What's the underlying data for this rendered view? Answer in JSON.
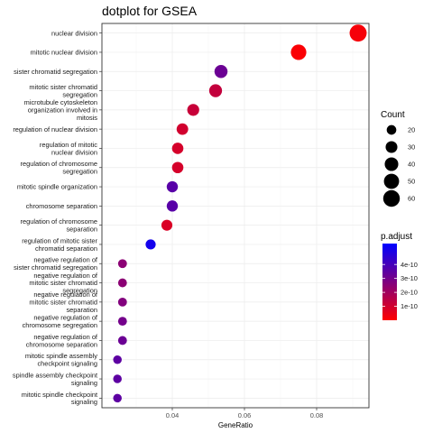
{
  "chart_data": {
    "type": "scatter",
    "title": "dotplot for GSEA",
    "xlabel": "GeneRatio",
    "ylabel": "",
    "xlim": [
      0.0205,
      0.0945
    ],
    "xticks": [
      0.04,
      0.06,
      0.08
    ],
    "xtick_labels": [
      "0.04",
      "0.06",
      "0.08"
    ],
    "grid": true,
    "points": [
      {
        "label": [
          "nuclear division"
        ],
        "x": 0.0915,
        "count": 63,
        "padj": 2e-11
      },
      {
        "label": [
          "mitotic nuclear division"
        ],
        "x": 0.075,
        "count": 52,
        "padj": 1e-11
      },
      {
        "label": [
          "sister chromatid segregation"
        ],
        "x": 0.0535,
        "count": 37,
        "padj": 3.2e-10
      },
      {
        "label": [
          "mitotic sister chromatid",
          "segregation"
        ],
        "x": 0.052,
        "count": 36,
        "padj": 1.3e-10
      },
      {
        "label": [
          "microtubule cytoskeleton",
          "organization involved in",
          "mitosis"
        ],
        "x": 0.0458,
        "count": 31,
        "padj": 1.2e-10
      },
      {
        "label": [
          "regulation of nuclear division"
        ],
        "x": 0.0428,
        "count": 29,
        "padj": 1e-10
      },
      {
        "label": [
          "regulation of mitotic",
          "nuclear division"
        ],
        "x": 0.0415,
        "count": 28,
        "padj": 9e-11
      },
      {
        "label": [
          "regulation of chromosome",
          "segregation"
        ],
        "x": 0.0415,
        "count": 28,
        "padj": 9e-11
      },
      {
        "label": [
          "mitotic spindle organization"
        ],
        "x": 0.04,
        "count": 27,
        "padj": 3.6e-10
      },
      {
        "label": [
          "chromosome separation"
        ],
        "x": 0.04,
        "count": 27,
        "padj": 3.6e-10
      },
      {
        "label": [
          "regulation of chromosome",
          "separation"
        ],
        "x": 0.0385,
        "count": 26,
        "padj": 8e-11
      },
      {
        "label": [
          "regulation of mitotic sister",
          "chromatid separation"
        ],
        "x": 0.034,
        "count": 22,
        "padj": 5.1e-10
      },
      {
        "label": [
          "negative regulation of",
          "sister chromatid segregation"
        ],
        "x": 0.0262,
        "count": 17,
        "padj": 2.5e-10
      },
      {
        "label": [
          "negative regulation of",
          "mitotic sister chromatid",
          "segregation"
        ],
        "x": 0.0262,
        "count": 17,
        "padj": 2.5e-10
      },
      {
        "label": [
          "negative regulation of",
          "mitotic sister chromatid",
          "separation"
        ],
        "x": 0.0262,
        "count": 17,
        "padj": 2.7e-10
      },
      {
        "label": [
          "negative regulation of",
          "chromosome segregation"
        ],
        "x": 0.0262,
        "count": 17,
        "padj": 3e-10
      },
      {
        "label": [
          "negative regulation of",
          "chromosome separation"
        ],
        "x": 0.0262,
        "count": 17,
        "padj": 3.2e-10
      },
      {
        "label": [
          "mitotic spindle assembly",
          "checkpoint signaling"
        ],
        "x": 0.0248,
        "count": 16,
        "padj": 3.5e-10
      },
      {
        "label": [
          "spindle assembly checkpoint",
          "signaling"
        ],
        "x": 0.0248,
        "count": 16,
        "padj": 3.5e-10
      },
      {
        "label": [
          "mitotic spindle checkpoint",
          "signaling"
        ],
        "x": 0.0248,
        "count": 16,
        "padj": 3.5e-10
      }
    ],
    "size_legend": {
      "title": "Count",
      "values": [
        20,
        30,
        40,
        50,
        60
      ],
      "labels": [
        "20",
        "30",
        "40",
        "50",
        "60"
      ]
    },
    "color_legend": {
      "title": "p.adjust",
      "range": [
        1e-13,
        5.5e-10
      ],
      "ticks": [
        1e-10,
        2e-10,
        3e-10,
        4e-10
      ],
      "tick_labels": [
        "1e-10",
        "2e-10",
        "3e-10",
        "4e-10"
      ],
      "low_color": "#ff0000",
      "high_color": "#0000ff"
    }
  }
}
